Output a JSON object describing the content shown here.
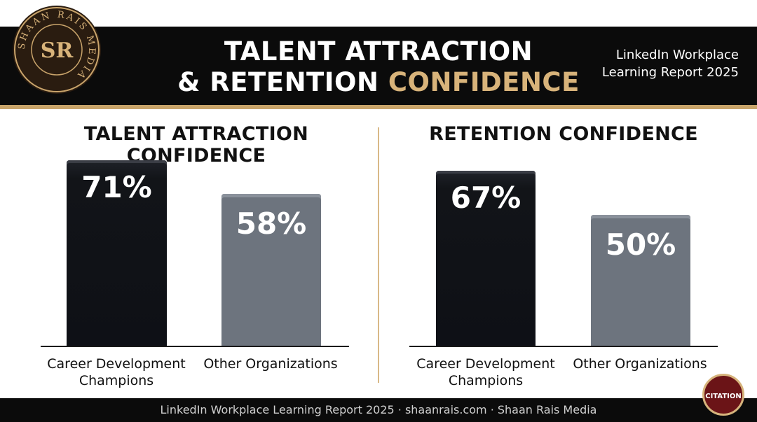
{
  "header": {
    "title_line1": "TALENT ATTRACTION",
    "title_line2_prefix": "& RETENTION",
    "title_line2_accent": "CONFIDENCE",
    "report_line1": "LinkedIn Workplace",
    "report_line2": "Learning Report 2025"
  },
  "logo": {
    "ring_text": "SHAAN RAIS MEDIA",
    "monogram": "SR"
  },
  "footer": {
    "text": "LinkedIn Workplace Learning Report 2025 · shaanrais.com · Shaan Rais Media"
  },
  "citation_label": "CITATION",
  "colors": {
    "dark_bar": "#0e1016",
    "gray_bar": "#6d747e",
    "accent_gold": "#d8b37a",
    "header_bg": "#0b0b0b",
    "citation_bg": "#6b1417"
  },
  "chart_data": [
    {
      "type": "bar",
      "title": "TALENT ATTRACTION CONFIDENCE",
      "categories": [
        "Career Development Champions",
        "Other Organizations"
      ],
      "values": [
        71,
        58
      ],
      "value_labels": [
        "71%",
        "58%"
      ],
      "ylim": [
        0,
        75
      ],
      "grid": false
    },
    {
      "type": "bar",
      "title": "RETENTION CONFIDENCE",
      "categories": [
        "Career Development Champions",
        "Other Organizations"
      ],
      "values": [
        67,
        50
      ],
      "value_labels": [
        "67%",
        "50%"
      ],
      "ylim": [
        0,
        75
      ],
      "grid": false
    }
  ]
}
